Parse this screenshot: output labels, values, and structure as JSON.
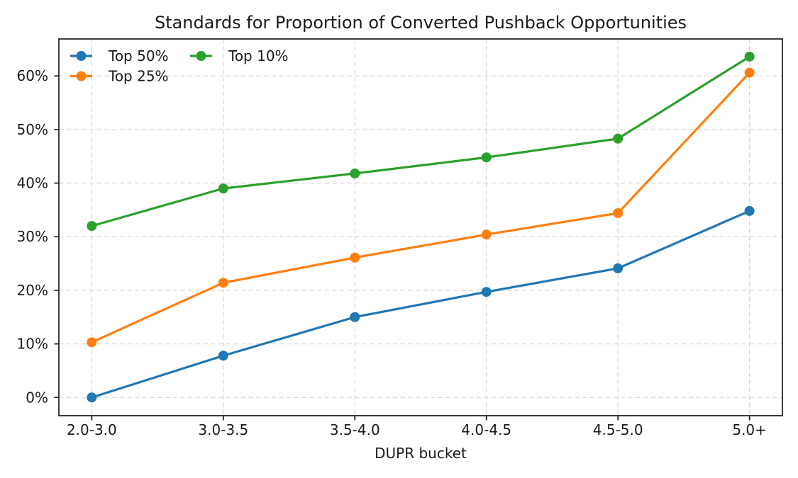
{
  "figure": {
    "background": "#ffffff",
    "spine_color": "#1a1a1a",
    "grid_color": "#d9d9d9",
    "tick_color": "#1a1a1a",
    "text_color": "#1a1a1a"
  },
  "chart_data": {
    "type": "line",
    "title": "Standards for Proportion of Converted Pushback Opportunities",
    "xlabel": "DUPR bucket",
    "ylabel": "",
    "categories": [
      "2.0-3.0",
      "3.0-3.5",
      "3.5-4.0",
      "4.0-4.5",
      "4.5-5.0",
      "5.0+"
    ],
    "series": [
      {
        "name": "Top 50%",
        "color": "#1f77b4",
        "values": [
          0.0,
          7.8,
          15.0,
          19.7,
          24.1,
          34.8
        ]
      },
      {
        "name": "Top 25%",
        "color": "#ff7f0e",
        "values": [
          10.3,
          21.4,
          26.1,
          30.4,
          34.4,
          60.6
        ]
      },
      {
        "name": "Top 10%",
        "color": "#2ca02c",
        "values": [
          32.0,
          39.0,
          41.8,
          44.8,
          48.3,
          63.6
        ]
      }
    ],
    "yticks": {
      "values": [
        0,
        10,
        20,
        30,
        40,
        50,
        60
      ],
      "labels": [
        "0%",
        "10%",
        "20%",
        "30%",
        "40%",
        "50%",
        "60%"
      ]
    },
    "ylim": [
      -3.4,
      66.9
    ],
    "grid": true,
    "grid_style": "dashed",
    "line_width": 3.2,
    "marker": "circle",
    "marker_radius": 7,
    "legend": {
      "position": "upper left",
      "columns": 2,
      "entries": [
        "Top 50%",
        "Top 25%",
        "Top 10%"
      ]
    }
  }
}
